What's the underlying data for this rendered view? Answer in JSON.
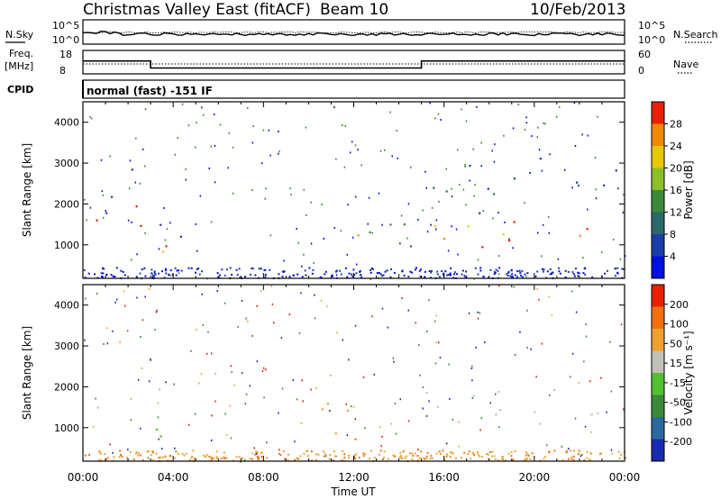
{
  "header": {
    "station": "Christmas Valley East (fitACF)",
    "beam": "Beam 10",
    "date": "10/Feb/2013"
  },
  "noise_panel": {
    "left_label": "N.Sky",
    "right_label": "N.Search",
    "left_ticks": [
      "10^5",
      "10^0"
    ],
    "right_ticks": [
      "10^5",
      "10^0"
    ]
  },
  "freq_panel": {
    "left_label_1": "Freq.",
    "left_label_2": "[MHz]",
    "right_label": "Nave",
    "left_ticks": [
      "18",
      "8"
    ],
    "right_ticks": [
      "60",
      "0"
    ],
    "freq_steps": [
      {
        "start_hour": 0,
        "end_hour": 3.0,
        "freq_mhz": 13.5
      },
      {
        "start_hour": 3.0,
        "end_hour": 15.0,
        "freq_mhz": 10.5
      },
      {
        "start_hour": 15.0,
        "end_hour": 24.0,
        "freq_mhz": 13.5
      }
    ]
  },
  "cpid": {
    "label": "CPID",
    "mode": "normal (fast) -151 IF"
  },
  "chart_data": [
    {
      "type": "heatmap",
      "quantity": "power",
      "ylabel": "Slant Range [km]",
      "xlabel": "",
      "xlim_hours": [
        0,
        24
      ],
      "ylim_km": [
        180,
        4500
      ],
      "y_ticks": [
        "4000",
        "3000",
        "2000",
        "1000"
      ],
      "colorbar_label": "Power [dB]",
      "colorbar_ticks": [
        "28",
        "24",
        "20",
        "16",
        "12",
        "8",
        "4"
      ],
      "colorbar_colors": [
        "#0010e0",
        "#1a3ea8",
        "#2a6a6a",
        "#3a8a3a",
        "#8cbf2a",
        "#e8c800",
        "#f08800",
        "#e82000"
      ],
      "echo_regions": [
        {
          "t0": 0.0,
          "t1": 1.2,
          "r0": 1100,
          "r1": 2100,
          "level": "high"
        },
        {
          "t0": 1.0,
          "t1": 3.8,
          "r0": 800,
          "r1": 2900,
          "level": "high"
        },
        {
          "t0": 3.0,
          "t1": 5.5,
          "r0": 1100,
          "r1": 1700,
          "level": "low"
        },
        {
          "t0": 10.5,
          "t1": 14.5,
          "r0": 700,
          "r1": 1800,
          "level": "mid"
        },
        {
          "t0": 15.0,
          "t1": 24.0,
          "r0": 900,
          "r1": 2000,
          "level": "high"
        },
        {
          "t0": 15.5,
          "t1": 24.0,
          "r0": 2200,
          "r1": 3500,
          "level": "low"
        }
      ]
    },
    {
      "type": "heatmap",
      "quantity": "velocity",
      "ylabel": "Slant Range [km]",
      "xlabel": "Time UT",
      "xlim_hours": [
        0,
        24
      ],
      "ylim_km": [
        180,
        4500
      ],
      "x_ticks": [
        "00:00",
        "04:00",
        "08:00",
        "12:00",
        "16:00",
        "20:00",
        "00:00"
      ],
      "y_ticks": [
        "4000",
        "3000",
        "2000",
        "1000"
      ],
      "colorbar_label": "Velocity [m s⁻¹]",
      "colorbar_ticks": [
        "200",
        "100",
        "50",
        "15",
        "-15",
        "-50",
        "-100",
        "-200"
      ],
      "colorbar_colors": [
        "#1a2ab0",
        "#2a6aa0",
        "#3a8a3a",
        "#50c030",
        "#c0c0b8",
        "#f0a030",
        "#f07010",
        "#e82000"
      ],
      "echo_regions": [
        {
          "t0": 0.0,
          "t1": 1.2,
          "r0": 1100,
          "r1": 2100,
          "level": "ground"
        },
        {
          "t0": 1.0,
          "t1": 3.8,
          "r0": 700,
          "r1": 1400,
          "level": "toward"
        },
        {
          "t0": 10.5,
          "t1": 14.5,
          "r0": 700,
          "r1": 1800,
          "level": "away"
        },
        {
          "t0": 15.0,
          "t1": 24.0,
          "r0": 1100,
          "r1": 2000,
          "level": "ground"
        }
      ]
    }
  ]
}
